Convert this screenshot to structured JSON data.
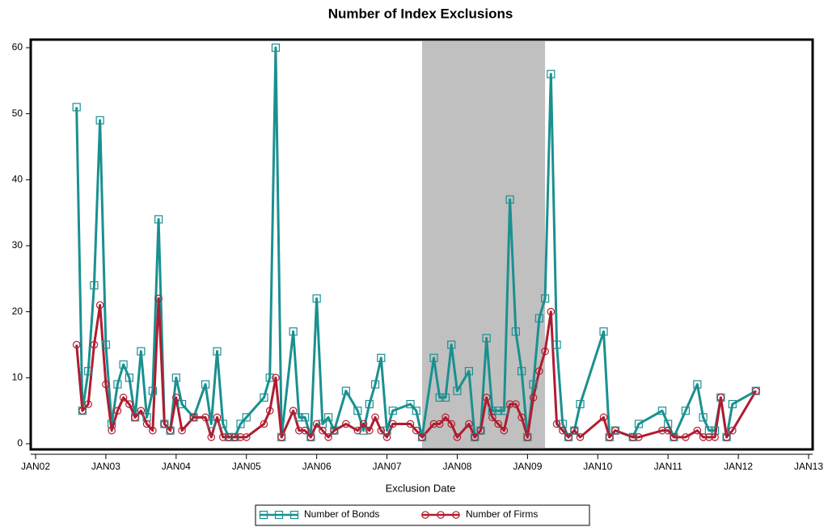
{
  "chart_data": {
    "type": "line",
    "title": "Number of Index Exclusions",
    "x_label": "Exclusion Date",
    "x": [
      "2002-08",
      "2002-09",
      "2002-10",
      "2002-11",
      "2002-12",
      "2003-01",
      "2003-02",
      "2003-03",
      "2003-04",
      "2003-05",
      "2003-06",
      "2003-07",
      "2003-08",
      "2003-09",
      "2003-10",
      "2003-11",
      "2003-12",
      "2004-01",
      "2004-02",
      "2004-04",
      "2004-06",
      "2004-07",
      "2004-08",
      "2004-09",
      "2004-10",
      "2004-11",
      "2004-12",
      "2005-01",
      "2005-04",
      "2005-05",
      "2005-06",
      "2005-07",
      "2005-09",
      "2005-10",
      "2005-11",
      "2005-12",
      "2006-01",
      "2006-02",
      "2006-03",
      "2006-04",
      "2006-06",
      "2006-08",
      "2006-09",
      "2006-10",
      "2006-11",
      "2006-12",
      "2007-01",
      "2007-02",
      "2007-05",
      "2007-06",
      "2007-07",
      "2007-09",
      "2007-10",
      "2007-11",
      "2007-12",
      "2008-01",
      "2008-03",
      "2008-04",
      "2008-05",
      "2008-06",
      "2008-07",
      "2008-08",
      "2008-09",
      "2008-10",
      "2008-11",
      "2008-12",
      "2009-01",
      "2009-02",
      "2009-03",
      "2009-04",
      "2009-05",
      "2009-06",
      "2009-07",
      "2009-08",
      "2009-09",
      "2009-10",
      "2010-02",
      "2010-03",
      "2010-04",
      "2010-07",
      "2010-08",
      "2010-12",
      "2011-01",
      "2011-02",
      "2011-04",
      "2011-06",
      "2011-07",
      "2011-08",
      "2011-09",
      "2011-10",
      "2011-11",
      "2011-12",
      "2012-04"
    ],
    "series": [
      {
        "name": "Number of Bonds",
        "color": "#1a9090",
        "marker": "square",
        "values": [
          51,
          5,
          11,
          24,
          49,
          15,
          3,
          9,
          12,
          10,
          4,
          14,
          4,
          8,
          34,
          3,
          2,
          10,
          6,
          4,
          9,
          3,
          14,
          3,
          1,
          1,
          3,
          4,
          7,
          10,
          60,
          1,
          17,
          4,
          4,
          1,
          22,
          3,
          4,
          2,
          8,
          5,
          2,
          6,
          9,
          13,
          2,
          5,
          6,
          5,
          1,
          13,
          7,
          7,
          15,
          8,
          11,
          1,
          2,
          16,
          5,
          5,
          5,
          37,
          17,
          11,
          1,
          9,
          19,
          22,
          56,
          15,
          3,
          1,
          2,
          6,
          17,
          1,
          2,
          1,
          3,
          5,
          3,
          1,
          5,
          9,
          4,
          2,
          2,
          7,
          1,
          6,
          8
        ]
      },
      {
        "name": "Number of Firms",
        "color": "#b01c30",
        "marker": "circle",
        "values": [
          15,
          5,
          6,
          15,
          21,
          9,
          2,
          5,
          7,
          6,
          4,
          5,
          3,
          2,
          22,
          3,
          2,
          7,
          2,
          4,
          4,
          1,
          4,
          1,
          1,
          1,
          1,
          1,
          3,
          5,
          10,
          1,
          5,
          2,
          2,
          1,
          3,
          2,
          1,
          2,
          3,
          2,
          3,
          2,
          4,
          2,
          1,
          3,
          3,
          2,
          1,
          3,
          3,
          4,
          3,
          1,
          3,
          1,
          2,
          7,
          4,
          3,
          2,
          6,
          6,
          4,
          1,
          7,
          11,
          14,
          20,
          3,
          2,
          1,
          2,
          1,
          4,
          1,
          2,
          1,
          1,
          2,
          2,
          1,
          1,
          2,
          1,
          1,
          1,
          7,
          1,
          2,
          8
        ]
      }
    ],
    "shade": [
      "2007-07",
      "2009-04"
    ],
    "shade_color": "#c0c0c0",
    "xlim": [
      "2002-01",
      "2013-01"
    ],
    "xticks": [
      {
        "value": "2002-01",
        "label": "JAN02"
      },
      {
        "value": "2003-01",
        "label": "JAN03"
      },
      {
        "value": "2004-01",
        "label": "JAN04"
      },
      {
        "value": "2005-01",
        "label": "JAN05"
      },
      {
        "value": "2006-01",
        "label": "JAN06"
      },
      {
        "value": "2007-01",
        "label": "JAN07"
      },
      {
        "value": "2008-01",
        "label": "JAN08"
      },
      {
        "value": "2009-01",
        "label": "JAN09"
      },
      {
        "value": "2010-01",
        "label": "JAN10"
      },
      {
        "value": "2011-01",
        "label": "JAN11"
      },
      {
        "value": "2012-01",
        "label": "JAN12"
      },
      {
        "value": "2013-01",
        "label": "JAN13"
      }
    ],
    "ylim": [
      0,
      60
    ],
    "yticks": [
      0,
      10,
      20,
      30,
      40,
      50,
      60
    ]
  }
}
